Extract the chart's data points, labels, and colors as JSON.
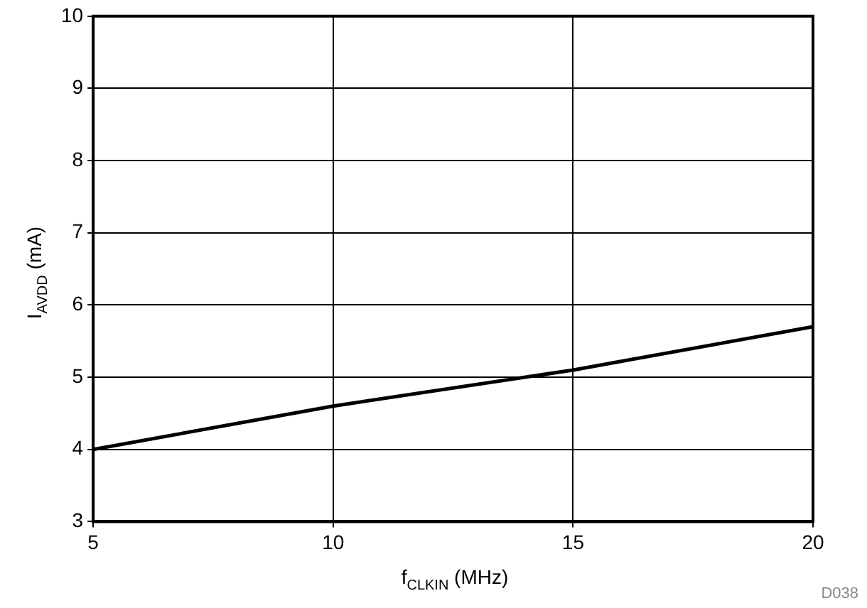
{
  "chart_data": {
    "type": "line",
    "xlabel": "f$_{CLKIN}$ (MHz)",
    "ylabel": "I$_{AVDD}$ (mA)",
    "x": [
      5,
      10,
      15,
      20
    ],
    "series": [
      {
        "color": "#000000",
        "values": [
          4.0,
          4.6,
          5.1,
          5.7
        ]
      }
    ],
    "xlim": [
      5,
      20
    ],
    "xticks": [
      5,
      10,
      15,
      20
    ],
    "ylim": [
      3,
      10
    ],
    "yticks": [
      3,
      4,
      5,
      6,
      7,
      8,
      9,
      10
    ],
    "grid": true,
    "legend": false,
    "marker": "none",
    "line_style": "solid",
    "annotations": [
      "D038"
    ]
  }
}
